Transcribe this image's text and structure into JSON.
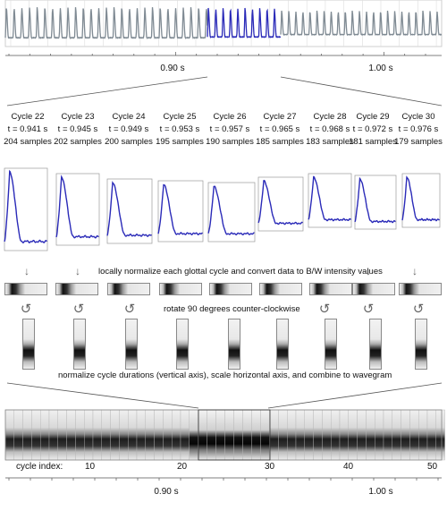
{
  "top_time_labels": [
    "0.90 s",
    "1.00 s"
  ],
  "bottom_time_labels": [
    "0.90 s",
    "1.00 s"
  ],
  "cycles": [
    {
      "label": "Cycle 22",
      "time": "t = 0.941 s",
      "samples": "204 samples"
    },
    {
      "label": "Cycle 23",
      "time": "t = 0.945 s",
      "samples": "202 samples"
    },
    {
      "label": "Cycle 24",
      "time": "t = 0.949 s",
      "samples": "200 samples"
    },
    {
      "label": "Cycle 25",
      "time": "t = 0.953 s",
      "samples": "195 samples"
    },
    {
      "label": "Cycle 26",
      "time": "t = 0.957 s",
      "samples": "190 samples"
    },
    {
      "label": "Cycle 27",
      "time": "t = 0.965 s",
      "samples": "185 samples"
    },
    {
      "label": "Cycle 28",
      "time": "t = 0.968 s",
      "samples": "183 samples"
    },
    {
      "label": "Cycle 29",
      "time": "t = 0.972 s",
      "samples": "181 samples"
    },
    {
      "label": "Cycle 30",
      "time": "t = 0.976 s",
      "samples": "179 samples"
    }
  ],
  "captions": {
    "normalize": "locally normalize each glottal cycle and convert data to B/W intensity values",
    "rotate": "rotate 90 degrees counter-clockwise",
    "combine": "normalize cycle durations (vertical axis), scale horizontal axis, and combine to wavegram"
  },
  "cycle_index": {
    "label": "cycle index:",
    "ticks": [
      "10",
      "20",
      "30",
      "40",
      "50"
    ]
  },
  "icons": {
    "down_arrow": "↓",
    "rotate_ccw": "↺"
  },
  "colors": {
    "waveform_gray": "#7f8a93",
    "highlight_blue": "#2a2ab8",
    "frame_gray": "#9a9a9a"
  }
}
